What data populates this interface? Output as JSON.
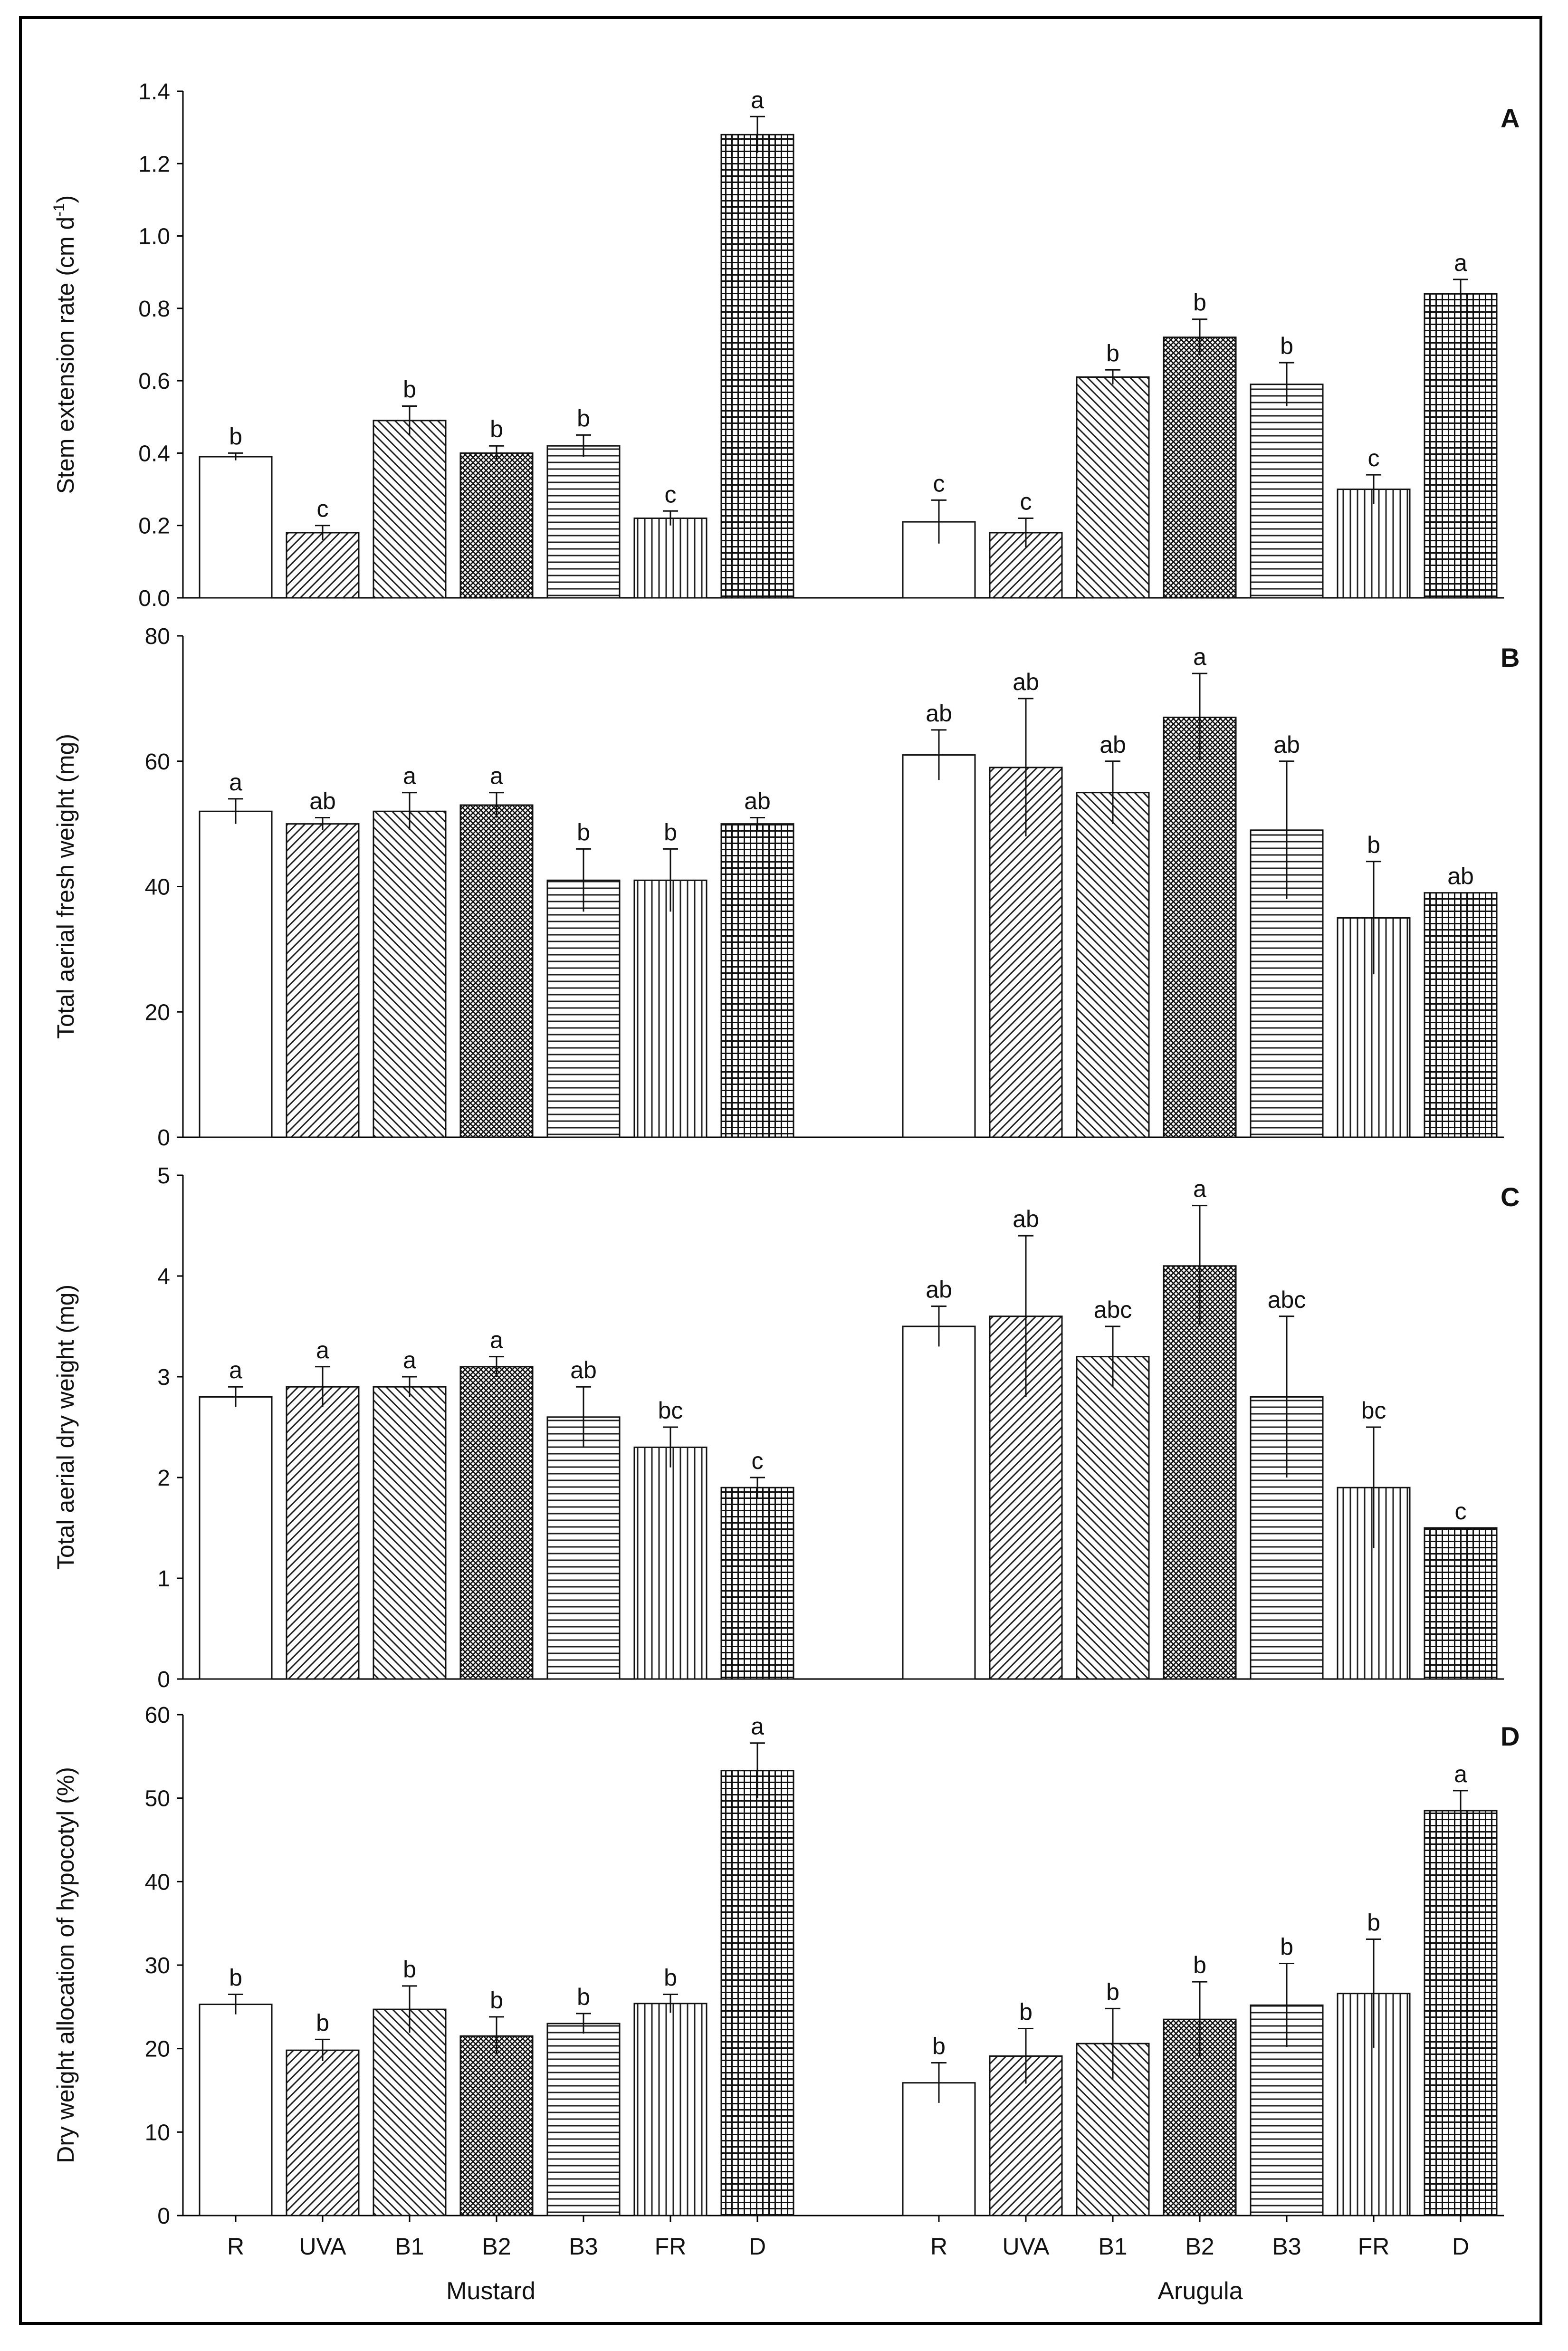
{
  "chart_data": {
    "type": "bar",
    "groups": [
      "Mustard",
      "Arugula"
    ],
    "categories": [
      "R",
      "UVA",
      "B1",
      "B2",
      "B3",
      "FR",
      "D"
    ],
    "patterns": [
      "empty",
      "diag-right",
      "diag-left",
      "crosshatch",
      "horizontal",
      "vertical",
      "grid"
    ],
    "panels": [
      {
        "letter": "A",
        "ylabel": "Stem extension rate (cm d",
        "ylabel_sup": "-1",
        "ylabel_end": ")",
        "ylim": [
          0,
          1.4
        ],
        "yticks": [
          "0.0",
          "0.2",
          "0.4",
          "0.6",
          "0.8",
          "1.0",
          "1.2",
          "1.4"
        ],
        "series": [
          {
            "name": "Mustard",
            "values": [
              0.39,
              0.18,
              0.49,
              0.4,
              0.42,
              0.22,
              1.28
            ],
            "errors": [
              0.01,
              0.02,
              0.04,
              0.02,
              0.03,
              0.02,
              0.05
            ],
            "labels": [
              "b",
              "c",
              "b",
              "b",
              "b",
              "c",
              "a"
            ]
          },
          {
            "name": "Arugula",
            "values": [
              0.21,
              0.18,
              0.61,
              0.72,
              0.59,
              0.3,
              0.84
            ],
            "errors": [
              0.06,
              0.04,
              0.02,
              0.05,
              0.06,
              0.04,
              0.04
            ],
            "labels": [
              "c",
              "c",
              "b",
              "b",
              "b",
              "c",
              "a"
            ]
          }
        ]
      },
      {
        "letter": "B",
        "ylabel": "Total aerial fresh weight (mg)",
        "ylim": [
          0,
          80
        ],
        "yticks": [
          "0",
          "20",
          "40",
          "60",
          "80"
        ],
        "series": [
          {
            "name": "Mustard",
            "values": [
              52,
              50,
              52,
              53,
              41,
              41,
              50
            ],
            "errors": [
              2,
              1,
              3,
              2,
              5,
              5,
              1
            ],
            "labels": [
              "a",
              "ab",
              "a",
              "a",
              "b",
              "b",
              "ab"
            ]
          },
          {
            "name": "Arugula",
            "values": [
              61,
              59,
              55,
              67,
              49,
              35,
              39
            ],
            "errors": [
              4,
              11,
              5,
              7,
              11,
              9,
              0
            ],
            "labels": [
              "ab",
              "ab",
              "ab",
              "a",
              "ab",
              "b",
              "ab"
            ]
          }
        ]
      },
      {
        "letter": "C",
        "ylabel": "Total aerial dry weight (mg)",
        "ylim": [
          0,
          5
        ],
        "yticks": [
          "0",
          "1",
          "2",
          "3",
          "4",
          "5"
        ],
        "series": [
          {
            "name": "Mustard",
            "values": [
              2.8,
              2.9,
              2.9,
              3.1,
              2.6,
              2.3,
              1.9
            ],
            "errors": [
              0.1,
              0.2,
              0.1,
              0.1,
              0.3,
              0.2,
              0.1
            ],
            "labels": [
              "a",
              "a",
              "a",
              "a",
              "ab",
              "bc",
              "c"
            ]
          },
          {
            "name": "Arugula",
            "values": [
              3.5,
              3.6,
              3.2,
              4.1,
              2.8,
              1.9,
              1.5
            ],
            "errors": [
              0.2,
              0.8,
              0.3,
              0.6,
              0.8,
              0.6,
              0.0
            ],
            "labels": [
              "ab",
              "ab",
              "abc",
              "a",
              "abc",
              "bc",
              "c"
            ]
          }
        ]
      },
      {
        "letter": "D",
        "ylabel": "Dry weight allocation of hypocotyl (%)",
        "ylim": [
          0,
          60
        ],
        "yticks": [
          "0",
          "10",
          "20",
          "30",
          "40",
          "50",
          "60"
        ],
        "series": [
          {
            "name": "Mustard",
            "values": [
              25.3,
              19.8,
              24.7,
              21.5,
              23.0,
              25.4,
              53.3
            ],
            "errors": [
              1.2,
              1.3,
              2.8,
              2.3,
              1.2,
              1.1,
              3.3
            ],
            "labels": [
              "b",
              "b",
              "b",
              "b",
              "b",
              "b",
              "a"
            ]
          },
          {
            "name": "Arugula",
            "values": [
              15.9,
              19.1,
              20.6,
              23.5,
              25.2,
              26.6,
              48.5
            ],
            "errors": [
              2.4,
              3.3,
              4.2,
              4.5,
              5.0,
              6.5,
              2.4
            ],
            "labels": [
              "b",
              "b",
              "b",
              "b",
              "b",
              "b",
              "a"
            ]
          }
        ]
      }
    ]
  }
}
